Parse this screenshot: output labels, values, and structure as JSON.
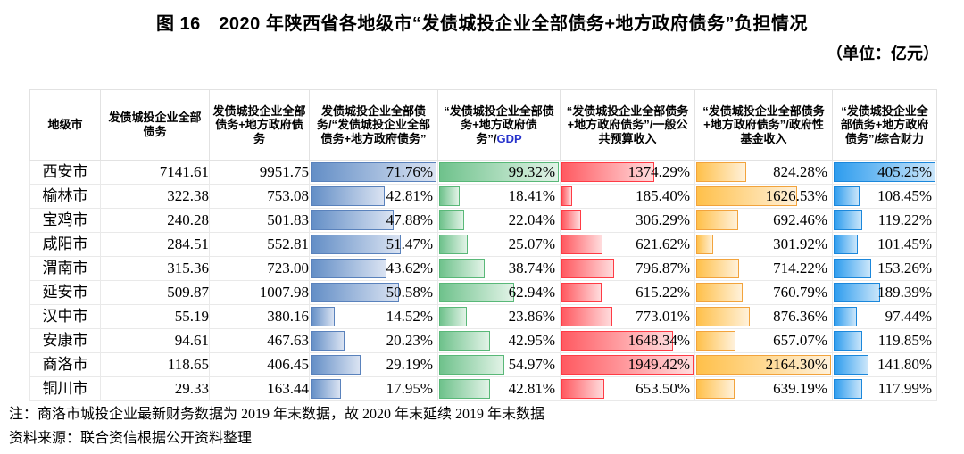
{
  "title": "图 16　2020 年陕西省各地级市“发债城投企业全部债务+地方政府债务”负担情况",
  "unit_label": "（单位：亿元）",
  "note": "注：商洛市城投企业最新财务数据为 2019 年末数据，故 2020 年末延续 2019 年末数据",
  "source": "资料来源：联合资信根据公开资料整理",
  "colors": {
    "gdp_text": "#2733CC"
  },
  "table": {
    "columns": [
      {
        "label": "地级市"
      },
      {
        "label": "发债城投企业全部债务"
      },
      {
        "label": "发债城投企业全部债务+地方政府债务"
      },
      {
        "label": "发债城投企业全部债务/“发债城投企业全部债务+地方政府债务”"
      },
      {
        "label_prefix": "“发债城投企业全部债务+地方政府债务”/",
        "label_highlight": "GDP"
      },
      {
        "label": "“发债城投企业全部债务+地方政府债务”/一般公共预算收入"
      },
      {
        "label": "“发债城投企业全部债务+地方政府债务”/政府性基金收入"
      },
      {
        "label": "“发债城投企业全部债务+地方政府债务”/综合财力"
      }
    ]
  },
  "chart_data": {
    "type": "table",
    "title": "2020 年陕西省各地级市“发债城投企业全部债务+地方政府债务”负担情况",
    "unit": "亿元",
    "bar_columns": {
      "ratio": {
        "max": 71.76,
        "fill_from": "#638EC6",
        "fill_to": "#DAE3F2",
        "border": "#5A82BC"
      },
      "gdp": {
        "max": 99.32,
        "fill_from": "#6FC28C",
        "fill_to": "#E2F3E7",
        "border": "#59B878"
      },
      "budget": {
        "max": 1949.42,
        "fill_from": "#FF5A61",
        "fill_to": "#FFDCDD",
        "border": "#FF3B45"
      },
      "fund": {
        "max": 2164.3,
        "fill_from": "#FFC04A",
        "fill_to": "#FFF1DA",
        "border": "#F2A33C"
      },
      "fiscal": {
        "max": 405.25,
        "fill_from": "#2D9CEE",
        "fill_to": "#CBE6FA",
        "border": "#1B87DB"
      }
    },
    "rows": [
      {
        "city": "西安市",
        "debt": "7141.61",
        "total": "9951.75",
        "ratio": "71.76%",
        "gdp": "99.32%",
        "budget": "1374.29%",
        "fund": "824.28%",
        "fiscal": "405.25%"
      },
      {
        "city": "榆林市",
        "debt": "322.38",
        "total": "753.08",
        "ratio": "42.81%",
        "gdp": "18.41%",
        "budget": "185.40%",
        "fund": "1626.53%",
        "fiscal": "108.45%"
      },
      {
        "city": "宝鸡市",
        "debt": "240.28",
        "total": "501.83",
        "ratio": "47.88%",
        "gdp": "22.04%",
        "budget": "306.29%",
        "fund": "692.46%",
        "fiscal": "119.22%"
      },
      {
        "city": "咸阳市",
        "debt": "284.51",
        "total": "552.81",
        "ratio": "51.47%",
        "gdp": "25.07%",
        "budget": "621.62%",
        "fund": "301.92%",
        "fiscal": "101.45%"
      },
      {
        "city": "渭南市",
        "debt": "315.36",
        "total": "723.00",
        "ratio": "43.62%",
        "gdp": "38.74%",
        "budget": "796.87%",
        "fund": "714.22%",
        "fiscal": "153.26%"
      },
      {
        "city": "延安市",
        "debt": "509.87",
        "total": "1007.98",
        "ratio": "50.58%",
        "gdp": "62.94%",
        "budget": "615.22%",
        "fund": "760.79%",
        "fiscal": "189.39%"
      },
      {
        "city": "汉中市",
        "debt": "55.19",
        "total": "380.16",
        "ratio": "14.52%",
        "gdp": "23.86%",
        "budget": "773.01%",
        "fund": "876.36%",
        "fiscal": "97.44%"
      },
      {
        "city": "安康市",
        "debt": "94.61",
        "total": "467.63",
        "ratio": "20.23%",
        "gdp": "42.95%",
        "budget": "1648.34%",
        "fund": "657.07%",
        "fiscal": "119.85%"
      },
      {
        "city": "商洛市",
        "debt": "118.65",
        "total": "406.45",
        "ratio": "29.19%",
        "gdp": "54.97%",
        "budget": "1949.42%",
        "fund": "2164.30%",
        "fiscal": "141.80%"
      },
      {
        "city": "铜川市",
        "debt": "29.33",
        "total": "163.44",
        "ratio": "17.95%",
        "gdp": "42.81%",
        "budget": "653.50%",
        "fund": "639.19%",
        "fiscal": "117.99%"
      }
    ]
  }
}
